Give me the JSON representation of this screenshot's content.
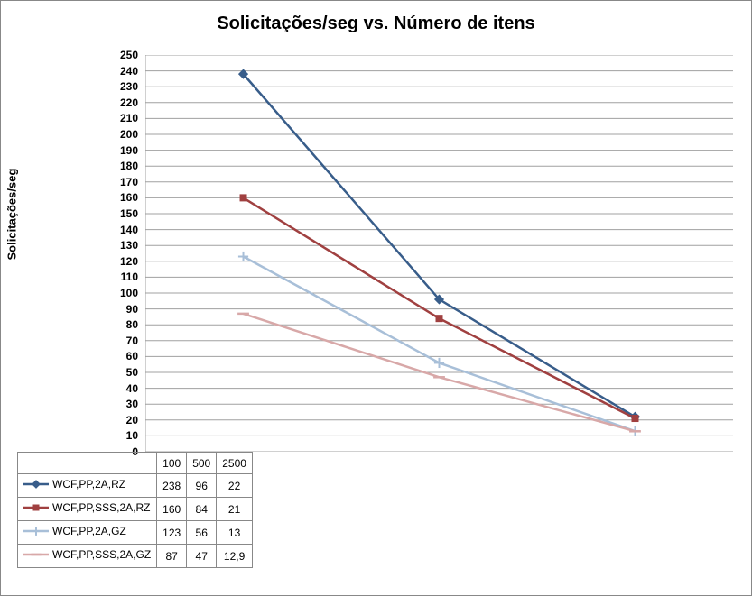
{
  "chart": {
    "type": "line",
    "title": "Solicitações/seg vs. Número de itens",
    "title_fontsize": 20,
    "ylabel": "Solicitações/seg",
    "label_fontsize": 13,
    "background_color": "#ffffff",
    "border_color": "#888888",
    "grid_color": "#a0a0a0",
    "grid": true,
    "font_family": "Arial",
    "ylim": [
      0,
      250
    ],
    "ytick_step": 10,
    "yticks": [
      0,
      10,
      20,
      30,
      40,
      50,
      60,
      70,
      80,
      90,
      100,
      110,
      120,
      130,
      140,
      150,
      160,
      170,
      180,
      190,
      200,
      210,
      220,
      230,
      240,
      250
    ],
    "categories": [
      "100",
      "500",
      "2500"
    ],
    "category_positions": [
      0.1667,
      0.5,
      0.8333
    ],
    "line_width": 2.5,
    "marker_size": 8,
    "series": [
      {
        "name": "WCF,PP,2A,RZ",
        "color": "#385d8a",
        "marker": "diamond",
        "values": [
          238,
          96,
          22
        ],
        "display": [
          "238",
          "96",
          "22"
        ]
      },
      {
        "name": "WCF,PP,SSS,2A,RZ",
        "color": "#a04040",
        "marker": "square",
        "values": [
          160,
          84,
          21
        ],
        "display": [
          "160",
          "84",
          "21"
        ]
      },
      {
        "name": "WCF,PP,2A,GZ",
        "color": "#a8bfd8",
        "marker": "plus",
        "values": [
          123,
          56,
          13
        ],
        "display": [
          "123",
          "56",
          "13"
        ]
      },
      {
        "name": "WCF,PP,SSS,2A,GZ",
        "color": "#d8a8a8",
        "marker": "line",
        "values": [
          87,
          47,
          12.9
        ],
        "display": [
          "87",
          "47",
          "12,9"
        ]
      }
    ],
    "table": {
      "header_row": [
        "",
        "100",
        "500",
        "2500"
      ]
    }
  }
}
